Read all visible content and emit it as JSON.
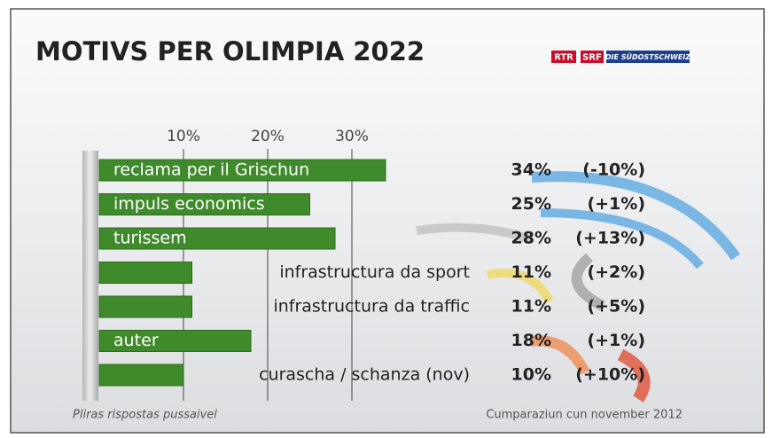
{
  "chart_data": {
    "type": "bar",
    "title": "MOTIVS PER OLIMPIA 2022",
    "logos": [
      "RTR",
      "SRF",
      "DIE SÜDOSTSCHWEIZ"
    ],
    "categories": [
      "reclama per il Grischun",
      "impuls economics",
      "turissem",
      "infrastructura da sport",
      "infrastructura da traffic",
      "auter",
      "curascha / schanza (nov)"
    ],
    "values": [
      34,
      25,
      28,
      11,
      11,
      18,
      10
    ],
    "value_labels": [
      "34%",
      "25%",
      "28%",
      "11%",
      "11%",
      "18%",
      "10%"
    ],
    "annotations": [
      "(-10%)",
      "(+1%)",
      "(+13%)",
      "(+2%)",
      "(+5%)",
      "(+1%)",
      "(+10%)"
    ],
    "color": "#3f8a2a",
    "xlim": [
      0,
      40
    ],
    "xticks": [
      {
        "value": 10,
        "label": "10%"
      },
      {
        "value": 20,
        "label": "20%"
      },
      {
        "value": 30,
        "label": "30%"
      }
    ],
    "grid": true,
    "footnote_left": "Pliras rispostas pussaivel",
    "footnote_right": "Cumparaziun cun november 2012"
  }
}
